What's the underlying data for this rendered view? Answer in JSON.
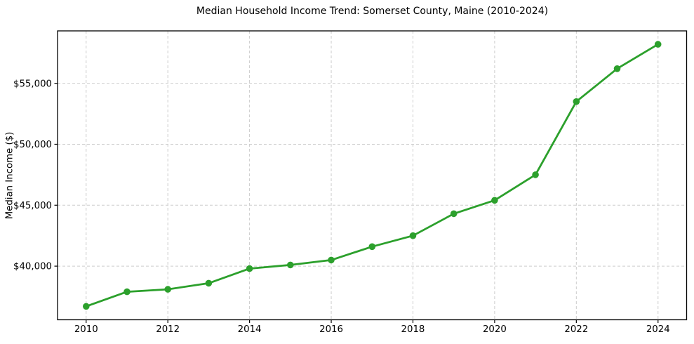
{
  "page": {
    "background": "#ffffff"
  },
  "chart_data": {
    "type": "line",
    "title": "Median Household Income Trend: Somerset County, Maine (2010-2024)",
    "xlabel": "",
    "ylabel": "Median Income ($)",
    "x": [
      2010,
      2011,
      2012,
      2013,
      2014,
      2015,
      2016,
      2017,
      2018,
      2019,
      2020,
      2021,
      2022,
      2023,
      2024
    ],
    "values": [
      36700,
      37900,
      38100,
      38600,
      39800,
      40100,
      40500,
      41600,
      42500,
      44300,
      45400,
      47500,
      53500,
      56200,
      58200
    ],
    "series_name": "Median Household Income",
    "line_color": "#2ca02c",
    "marker": "circle",
    "marker_color": "#2ca02c",
    "grid": true,
    "grid_color": "#cccccc",
    "grid_style": "dashed",
    "legend": "none",
    "xlim": [
      2009.3,
      2024.7
    ],
    "ylim": [
      35600,
      59300
    ],
    "xticks": [
      2010,
      2012,
      2014,
      2016,
      2018,
      2020,
      2022,
      2024
    ],
    "xtick_labels": [
      "2010",
      "2012",
      "2014",
      "2016",
      "2018",
      "2020",
      "2022",
      "2024"
    ],
    "yticks": [
      40000,
      45000,
      50000,
      55000
    ],
    "ytick_labels": [
      "$40,000",
      "$45,000",
      "$50,000",
      "$55,000"
    ],
    "axis_color": "#000000"
  }
}
